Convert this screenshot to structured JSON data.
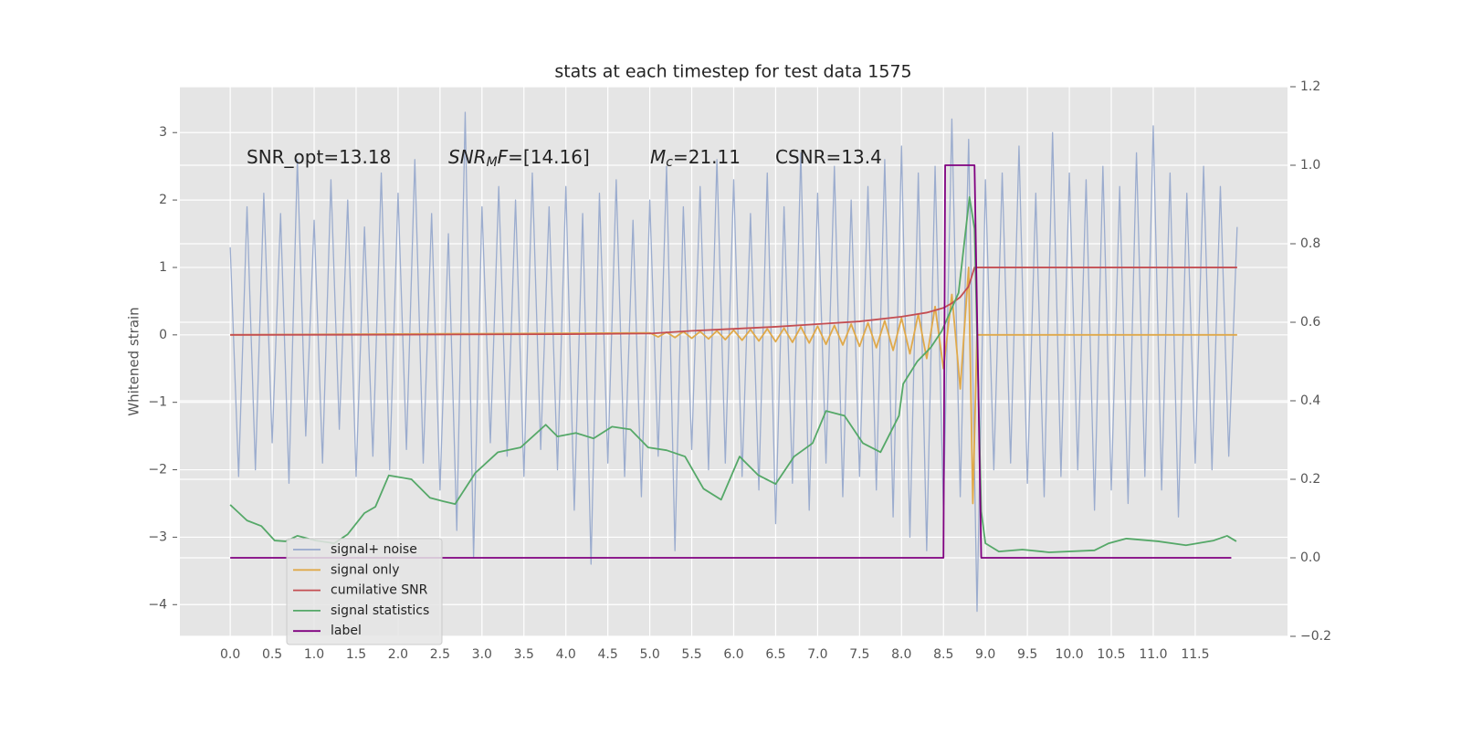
{
  "chart_data": {
    "type": "line",
    "title": "stats at each timestep for test data 1575",
    "ylabel": "Whitened strain",
    "grid": true,
    "legend": "lower left",
    "xlim": [
      -0.6,
      12.6
    ],
    "ylim": [
      -4.47,
      3.68
    ],
    "y2lim": [
      -0.2,
      1.2
    ],
    "xticks": [
      {
        "value": 0,
        "label": "0.0"
      },
      0.5,
      {
        "value": 1,
        "label": "1.0"
      },
      1.5,
      {
        "value": 2,
        "label": "2.0"
      },
      2.5,
      {
        "value": 3,
        "label": "3.0"
      },
      3.5,
      {
        "value": 4,
        "label": "4.0"
      },
      4.5,
      {
        "value": 5,
        "label": "5.0"
      },
      5.5,
      {
        "value": 6,
        "label": "6.0"
      },
      6.5,
      {
        "value": 7,
        "label": "7.0"
      },
      7.5,
      {
        "value": 8,
        "label": "8.0"
      },
      8.5,
      {
        "value": 9,
        "label": "9.0"
      },
      9.5,
      {
        "value": 10,
        "label": "10.0"
      },
      10.5,
      {
        "value": 11,
        "label": "11.0"
      },
      11.5
    ],
    "yticks": [
      {
        "value": -4,
        "label": "−4"
      },
      {
        "value": -3,
        "label": "−3"
      },
      {
        "value": -2,
        "label": "−2"
      },
      {
        "value": -1,
        "label": "−1"
      },
      0,
      1,
      2,
      3
    ],
    "y2ticks": [
      {
        "value": -0.2,
        "label": "−0.2"
      },
      {
        "value": 0,
        "label": "0.0"
      },
      0.2,
      0.4,
      0.6,
      0.8,
      {
        "value": 1,
        "label": "1.0"
      },
      1.2
    ],
    "annotations": [
      [
        {
          "text": "SNR_opt=13.18",
          "style": "normal"
        }
      ],
      [
        {
          "text": "SNR",
          "style": "italic"
        },
        {
          "text": "M",
          "style": "sub"
        },
        {
          "text": "F",
          "style": "italic"
        },
        {
          "text": "=[14.16]",
          "style": "normal"
        }
      ],
      [
        {
          "text": "M",
          "style": "italic"
        },
        {
          "text": "c",
          "style": "sub"
        },
        {
          "text": "=21.11",
          "style": "normal"
        }
      ],
      [
        {
          "text": "CSNR=13.4",
          "style": "normal"
        }
      ]
    ],
    "series": [
      {
        "name": "signal+ noise",
        "color": "#97a9cc",
        "x": [
          0,
          0.1,
          0.2,
          0.3,
          0.4,
          0.5,
          0.6,
          0.7,
          0.8,
          0.9,
          1,
          1.1,
          1.2,
          1.3,
          1.4,
          1.5,
          1.6,
          1.7,
          1.8,
          1.9,
          2,
          2.1,
          2.2,
          2.3,
          2.4,
          2.5,
          2.6,
          2.7,
          2.8,
          2.9,
          3,
          3.1,
          3.2,
          3.3,
          3.4,
          3.5,
          3.6,
          3.7,
          3.8,
          3.9,
          4,
          4.1,
          4.2,
          4.3,
          4.4,
          4.5,
          4.6,
          4.7,
          4.8,
          4.9,
          5,
          5.1,
          5.2,
          5.3,
          5.4,
          5.5,
          5.6,
          5.7,
          5.8,
          5.9,
          6,
          6.1,
          6.2,
          6.3,
          6.4,
          6.5,
          6.6,
          6.7,
          6.8,
          6.9,
          7,
          7.1,
          7.2,
          7.3,
          7.4,
          7.5,
          7.6,
          7.7,
          7.8,
          7.9,
          8,
          8.1,
          8.2,
          8.3,
          8.4,
          8.5,
          8.6,
          8.7,
          8.8,
          8.9,
          9,
          9.1,
          9.2,
          9.3,
          9.4,
          9.5,
          9.6,
          9.7,
          9.8,
          9.9,
          10,
          10.1,
          10.2,
          10.3,
          10.4,
          10.5,
          10.6,
          10.7,
          10.8,
          10.9,
          11,
          11.1,
          11.2,
          11.3,
          11.4,
          11.5,
          11.6,
          11.7,
          11.8,
          11.9,
          12
        ],
        "values": [
          1.3,
          -2.1,
          1.9,
          -2.0,
          2.1,
          -1.6,
          1.8,
          -2.2,
          2.6,
          -1.5,
          1.7,
          -1.9,
          2.3,
          -1.4,
          2.0,
          -2.1,
          1.6,
          -1.8,
          2.4,
          -2.0,
          2.1,
          -1.7,
          2.6,
          -1.9,
          1.8,
          -2.3,
          1.5,
          -2.9,
          3.3,
          -3.3,
          1.9,
          -1.6,
          2.2,
          -1.8,
          2.0,
          -2.1,
          2.4,
          -1.7,
          1.9,
          -2.0,
          2.2,
          -2.6,
          1.8,
          -3.4,
          2.1,
          -1.9,
          2.3,
          -2.1,
          1.7,
          -2.4,
          2.0,
          -1.8,
          2.5,
          -3.2,
          1.9,
          -1.7,
          2.2,
          -2.0,
          2.6,
          -1.9,
          2.3,
          -2.1,
          1.8,
          -2.3,
          2.4,
          -2.8,
          1.9,
          -2.2,
          2.7,
          -2.6,
          2.1,
          -1.9,
          2.5,
          -2.4,
          2.0,
          -2.1,
          2.2,
          -2.3,
          2.6,
          -2.7,
          2.8,
          -3.0,
          2.4,
          -3.2,
          2.5,
          -2.6,
          3.2,
          -2.4,
          2.9,
          -4.1,
          2.3,
          -2.0,
          2.4,
          -1.9,
          2.8,
          -2.2,
          2.1,
          -2.4,
          3.0,
          -2.1,
          2.4,
          -2.0,
          2.3,
          -2.6,
          2.5,
          -2.3,
          2.2,
          -2.5,
          2.7,
          -2.1,
          3.1,
          -2.3,
          2.4,
          -2.7,
          2.1,
          -1.9,
          2.5,
          -2.0,
          2.2,
          -1.8,
          1.6
        ]
      },
      {
        "name": "signal only",
        "color": "#e0a94a",
        "x": [
          0,
          5,
          5.1,
          5.2,
          5.3,
          5.4,
          5.5,
          5.6,
          5.7,
          5.8,
          5.9,
          6,
          6.1,
          6.2,
          6.3,
          6.4,
          6.5,
          6.6,
          6.7,
          6.8,
          6.9,
          7,
          7.1,
          7.2,
          7.3,
          7.4,
          7.5,
          7.6,
          7.7,
          7.8,
          7.9,
          8,
          8.1,
          8.2,
          8.3,
          8.4,
          8.5,
          8.6,
          8.7,
          8.8,
          8.85,
          8.9,
          12
        ],
        "values": [
          0,
          0.03,
          -0.03,
          0.04,
          -0.04,
          0.05,
          -0.05,
          0.05,
          -0.06,
          0.06,
          -0.07,
          0.07,
          -0.08,
          0.08,
          -0.09,
          0.09,
          -0.1,
          0.1,
          -0.11,
          0.12,
          -0.12,
          0.13,
          -0.14,
          0.14,
          -0.15,
          0.16,
          -0.17,
          0.18,
          -0.19,
          0.21,
          -0.23,
          0.25,
          -0.28,
          0.31,
          -0.35,
          0.42,
          -0.5,
          0.6,
          -0.8,
          1.0,
          -2.5,
          0,
          0
        ]
      },
      {
        "name": "cumilative SNR",
        "color": "#c44e52",
        "x": [
          0,
          2,
          4,
          5,
          5.5,
          6,
          6.5,
          7,
          7.5,
          8,
          8.3,
          8.5,
          8.6,
          8.7,
          8.8,
          8.87,
          12
        ],
        "values": [
          0,
          0.003,
          0.01,
          0.02,
          0.06,
          0.09,
          0.12,
          0.16,
          0.2,
          0.27,
          0.33,
          0.4,
          0.47,
          0.56,
          0.72,
          1.0,
          1.0
        ]
      },
      {
        "name": "signal statistics",
        "color": "#55a868",
        "axis": "y2",
        "x": [
          0,
          0.2,
          0.37,
          0.53,
          0.66,
          0.8,
          1.02,
          1.24,
          1.4,
          1.6,
          1.73,
          1.89,
          2.16,
          2.38,
          2.54,
          2.68,
          2.92,
          3.19,
          3.46,
          3.76,
          3.9,
          4.12,
          4.33,
          4.55,
          4.77,
          4.98,
          5.2,
          5.42,
          5.64,
          5.85,
          6.07,
          6.29,
          6.5,
          6.72,
          6.94,
          7.1,
          7.32,
          7.54,
          7.75,
          7.97,
          8.02,
          8.19,
          8.35,
          8.48,
          8.68,
          8.81,
          8.87,
          8.95,
          9,
          9.16,
          9.44,
          9.76,
          10.3,
          10.47,
          10.68,
          11.06,
          11.39,
          11.72,
          11.88,
          11.99
        ],
        "values": [
          0.135,
          0.095,
          0.081,
          0.044,
          0.042,
          0.056,
          0.044,
          0.037,
          0.06,
          0.114,
          0.13,
          0.21,
          0.2,
          0.153,
          0.144,
          0.137,
          0.216,
          0.269,
          0.281,
          0.339,
          0.309,
          0.318,
          0.304,
          0.334,
          0.327,
          0.281,
          0.274,
          0.258,
          0.176,
          0.148,
          0.258,
          0.211,
          0.188,
          0.258,
          0.292,
          0.374,
          0.362,
          0.292,
          0.269,
          0.362,
          0.443,
          0.501,
          0.536,
          0.578,
          0.675,
          0.919,
          0.838,
          0.118,
          0.037,
          0.016,
          0.021,
          0.014,
          0.019,
          0.037,
          0.049,
          0.042,
          0.032,
          0.044,
          0.056,
          0.042
        ]
      },
      {
        "name": "label",
        "color": "#800080",
        "axis": "y2",
        "x": [
          0,
          8.5,
          8.52,
          8.87,
          8.95,
          11.93
        ],
        "values": [
          0,
          0,
          1,
          1,
          0,
          0
        ]
      }
    ]
  }
}
